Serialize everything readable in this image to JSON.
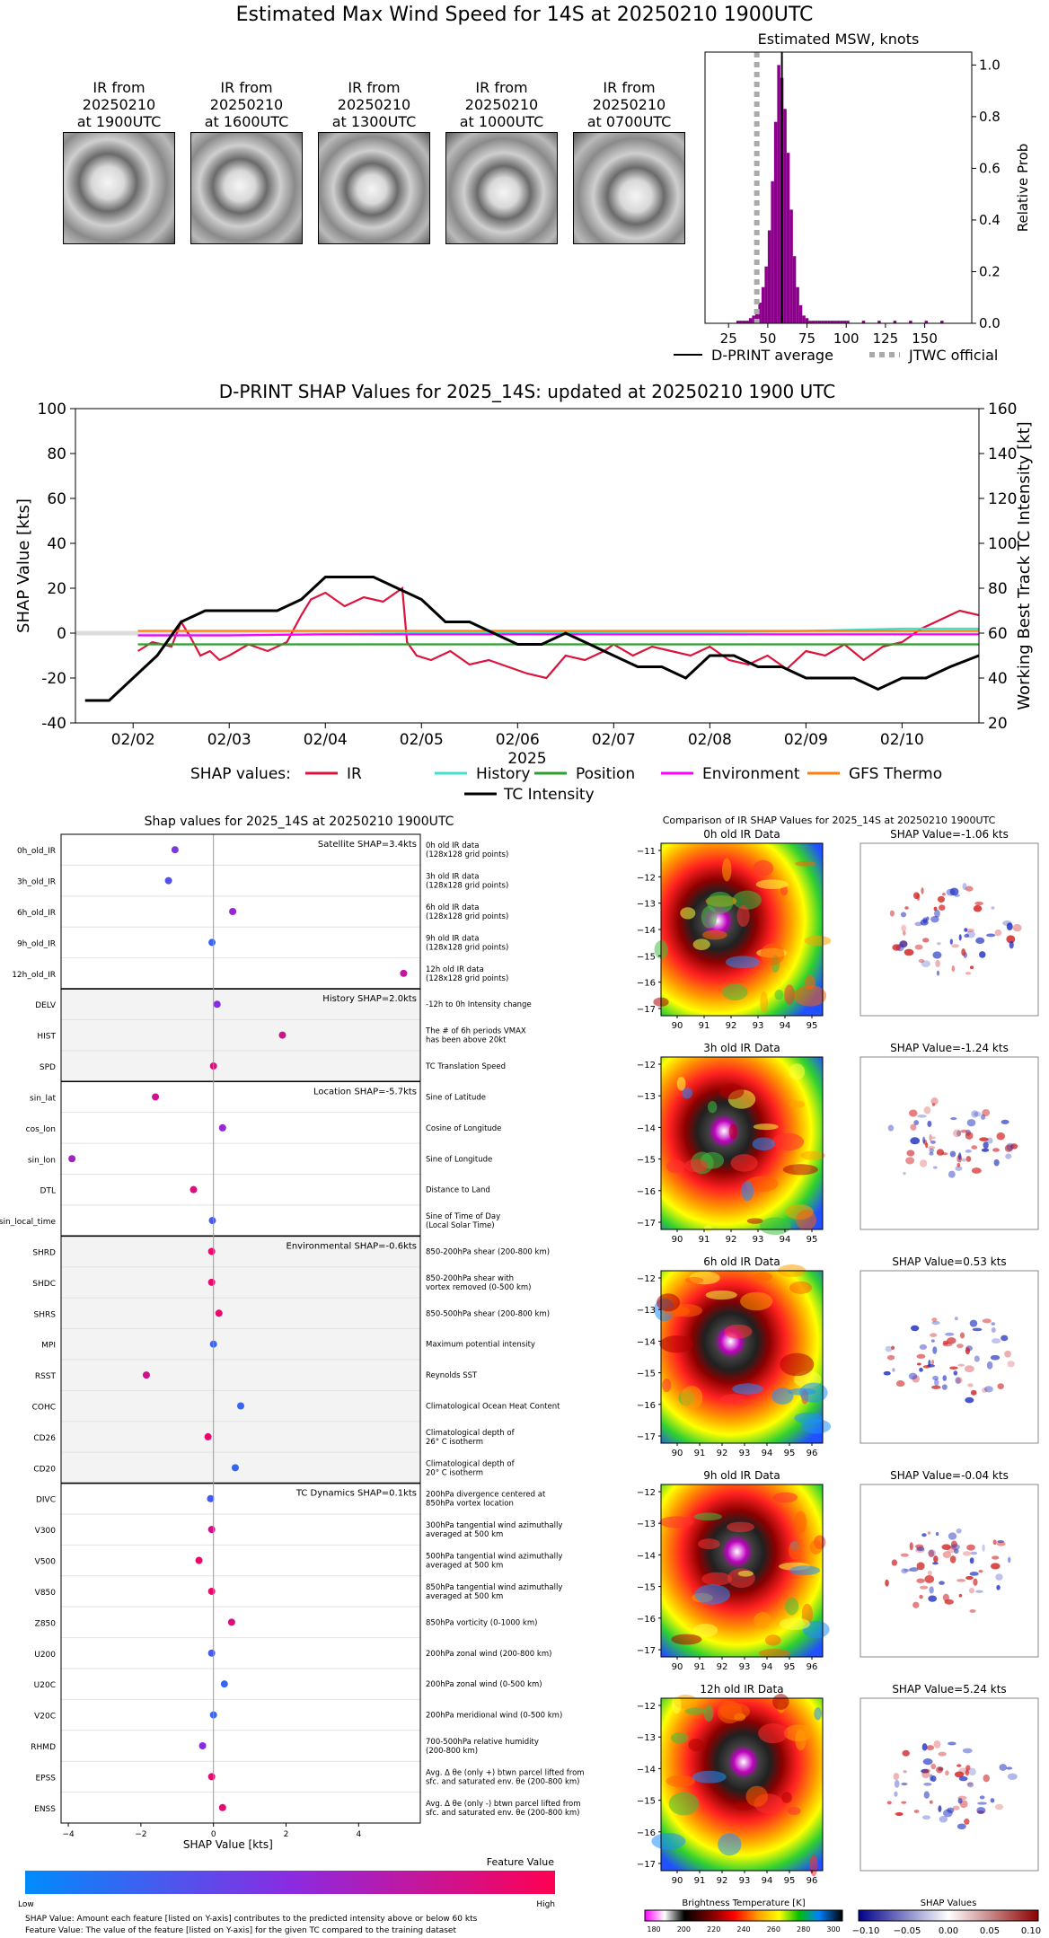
{
  "main_title": "Estimated Max Wind Speed for 14S at 20250210 1900UTC",
  "thumbnails": [
    {
      "label": "IR from\n20250210\nat 1900UTC"
    },
    {
      "label": "IR from\n20250210\nat 1600UTC"
    },
    {
      "label": "IR from\n20250210\nat 1300UTC"
    },
    {
      "label": "IR from\n20250210\nat 1000UTC"
    },
    {
      "label": "IR from\n20250210\nat 0700UTC"
    }
  ],
  "chart_data": [
    {
      "type": "bar",
      "title": "Estimated MSW, knots",
      "ylabel": "Relative Prob",
      "xlim": [
        10,
        180
      ],
      "ylim": [
        0,
        1.05
      ],
      "xticks": [
        25,
        50,
        75,
        100,
        125,
        150
      ],
      "yticks": [
        0.0,
        0.2,
        0.4,
        0.6,
        0.8,
        1.0
      ],
      "bin_width": 2,
      "bins_x": [
        30,
        32,
        34,
        36,
        38,
        40,
        42,
        44,
        46,
        48,
        50,
        52,
        54,
        56,
        58,
        60,
        62,
        64,
        66,
        68,
        70,
        72,
        74,
        76,
        78,
        80,
        82,
        84,
        86,
        88,
        90,
        92,
        94,
        96,
        98,
        100,
        110,
        120,
        130,
        140,
        150,
        160
      ],
      "bins_y": [
        0.01,
        0.01,
        0.01,
        0.01,
        0.02,
        0.03,
        0.05,
        0.08,
        0.14,
        0.22,
        0.36,
        0.55,
        0.78,
        1.0,
        0.95,
        0.83,
        0.66,
        0.44,
        0.26,
        0.14,
        0.07,
        0.03,
        0.02,
        0.01,
        0.01,
        0.01,
        0.01,
        0.01,
        0.01,
        0.01,
        0.01,
        0.01,
        0.01,
        0.01,
        0.01,
        0.01,
        0.01,
        0.01,
        0.01,
        0.01,
        0.01,
        0.01
      ],
      "dprint_average": 59,
      "jtwc_official": 43,
      "legend": [
        "D-PRINT average",
        "JTWC official"
      ]
    },
    {
      "type": "line",
      "title": "D-PRINT SHAP Values for 2025_14S: updated at 20250210 1900 UTC",
      "xlabel": "2025",
      "ylabel": "SHAP Value [kts]",
      "y2label": "Working Best Track TC Intensity [kt]",
      "ylim": [
        -40,
        100
      ],
      "y2lim": [
        20,
        160
      ],
      "yticks": [
        -40,
        -20,
        0,
        20,
        40,
        60,
        80,
        100
      ],
      "y2ticks": [
        20,
        40,
        60,
        80,
        100,
        120,
        140,
        160
      ],
      "xlim_days": [
        1.4,
        10.8
      ],
      "xticks": [
        "02/02",
        "02/03",
        "02/04",
        "02/05",
        "02/06",
        "02/07",
        "02/08",
        "02/09",
        "02/10"
      ],
      "legend_prefix": "SHAP values:",
      "series": [
        {
          "name": "IR",
          "color": "#dc143c",
          "x": [
            2.05,
            2.2,
            2.4,
            2.5,
            2.6,
            2.7,
            2.8,
            2.9,
            3.0,
            3.2,
            3.4,
            3.6,
            3.75,
            3.85,
            4.0,
            4.2,
            4.4,
            4.6,
            4.8,
            4.85,
            4.95,
            5.1,
            5.3,
            5.5,
            5.7,
            5.9,
            6.1,
            6.3,
            6.5,
            6.7,
            6.9,
            7.0,
            7.2,
            7.4,
            7.6,
            7.8,
            8.0,
            8.2,
            8.4,
            8.6,
            8.8,
            9.0,
            9.2,
            9.4,
            9.6,
            9.8,
            10.0,
            10.2,
            10.4,
            10.6,
            10.8
          ],
          "y": [
            -8,
            -4,
            -6,
            5,
            -2,
            -10,
            -8,
            -12,
            -10,
            -5,
            -8,
            -4,
            8,
            15,
            18,
            12,
            16,
            14,
            20,
            -4,
            -10,
            -12,
            -8,
            -14,
            -12,
            -15,
            -18,
            -20,
            -10,
            -12,
            -8,
            -5,
            -10,
            -6,
            -8,
            -10,
            -6,
            -12,
            -14,
            -10,
            -16,
            -8,
            -10,
            -5,
            -12,
            -6,
            -4,
            2,
            6,
            10,
            8
          ]
        },
        {
          "name": "History",
          "color": "#40e0d0",
          "x": [
            2.05,
            3,
            4,
            5,
            6,
            7,
            8,
            9,
            10,
            10.8
          ],
          "y": [
            -1,
            -1,
            -0.5,
            0,
            0,
            0.5,
            0.5,
            1,
            2,
            2
          ]
        },
        {
          "name": "Position",
          "color": "#2ca02c",
          "x": [
            2.05,
            3,
            4,
            5,
            6,
            7,
            8,
            9,
            10,
            10.8
          ],
          "y": [
            -5,
            -5,
            -5,
            -5,
            -5,
            -5,
            -5,
            -5,
            -5,
            -5
          ]
        },
        {
          "name": "Environment",
          "color": "#ff00ff",
          "x": [
            2.05,
            3,
            4,
            5,
            6,
            7,
            8,
            9,
            10,
            10.8
          ],
          "y": [
            -1,
            -1,
            -0.5,
            -0.5,
            -0.5,
            -0.5,
            -0.5,
            -0.5,
            -0.5,
            -0.5
          ]
        },
        {
          "name": "GFS Thermo",
          "color": "#ff7f0e",
          "x": [
            2.05,
            3,
            4,
            5,
            6,
            7,
            8,
            9,
            10,
            10.8
          ],
          "y": [
            1,
            1,
            1,
            1,
            1,
            1,
            1,
            1,
            1,
            1
          ]
        },
        {
          "name": "TC Intensity",
          "color": "#000000",
          "axis": "right",
          "x": [
            1.5,
            1.75,
            2.0,
            2.25,
            2.5,
            2.75,
            3.0,
            3.25,
            3.5,
            3.75,
            4.0,
            4.25,
            4.5,
            4.75,
            5.0,
            5.25,
            5.5,
            5.75,
            6.0,
            6.25,
            6.5,
            6.75,
            7.0,
            7.25,
            7.5,
            7.75,
            8.0,
            8.25,
            8.5,
            8.75,
            9.0,
            9.25,
            9.5,
            9.75,
            10.0,
            10.25,
            10.5,
            10.8
          ],
          "y": [
            30,
            30,
            40,
            50,
            65,
            70,
            70,
            70,
            70,
            75,
            85,
            85,
            85,
            80,
            75,
            65,
            65,
            60,
            55,
            55,
            60,
            55,
            50,
            45,
            45,
            40,
            50,
            50,
            45,
            45,
            40,
            40,
            40,
            35,
            40,
            40,
            45,
            50
          ]
        }
      ]
    },
    {
      "type": "scatter",
      "title": "Shap values for 2025_14S at 20250210 1900UTC",
      "xlabel": "SHAP Value [kts]",
      "xlim": [
        -4.2,
        5.7
      ],
      "xticks": [
        -4,
        -2,
        0,
        2,
        4
      ],
      "colorbar": {
        "title": "Feature Value",
        "low": "Low",
        "high": "High"
      },
      "groups": [
        {
          "label": "Satellite SHAP=3.4kts",
          "shaded": false,
          "features": [
            {
              "name": "0h_old_IR",
              "shap": -1.06,
              "value": 0.45,
              "desc": "0h old IR data\n(128x128 grid points)"
            },
            {
              "name": "3h_old_IR",
              "shap": -1.24,
              "value": 0.3,
              "desc": "3h old IR data\n(128x128 grid points)"
            },
            {
              "name": "6h_old_IR",
              "shap": 0.53,
              "value": 0.55,
              "desc": "6h old IR data\n(128x128 grid points)"
            },
            {
              "name": "9h_old_IR",
              "shap": -0.04,
              "value": 0.2,
              "desc": "9h old IR data\n(128x128 grid points)"
            },
            {
              "name": "12h_old_IR",
              "shap": 5.24,
              "value": 0.75,
              "desc": "12h old IR data\n(128x128 grid points)"
            }
          ]
        },
        {
          "label": "History SHAP=2.0kts",
          "shaded": true,
          "features": [
            {
              "name": "DELV",
              "shap": 0.1,
              "value": 0.5,
              "desc": "-12h to 0h Intensity change"
            },
            {
              "name": "HIST",
              "shap": 1.9,
              "value": 0.8,
              "desc": "The # of 6h periods VMAX\nhas been above 20kt"
            },
            {
              "name": "SPD",
              "shap": 0.0,
              "value": 0.85,
              "desc": "TC Translation Speed"
            }
          ]
        },
        {
          "label": "Location SHAP=-5.7kts",
          "shaded": false,
          "features": [
            {
              "name": "sin_lat",
              "shap": -1.6,
              "value": 0.8,
              "desc": "Sine of Latitude"
            },
            {
              "name": "cos_lon",
              "shap": 0.25,
              "value": 0.55,
              "desc": "Cosine of Longitude"
            },
            {
              "name": "sin_lon",
              "shap": -3.9,
              "value": 0.6,
              "desc": "Sine of Longitude"
            },
            {
              "name": "DTL",
              "shap": -0.55,
              "value": 0.85,
              "desc": "Distance to Land"
            },
            {
              "name": "sin_local_time",
              "shap": -0.03,
              "value": 0.25,
              "desc": "Sine of Time of Day\n(Local Solar Time)"
            }
          ]
        },
        {
          "label": "Environmental SHAP=-0.6kts",
          "shaded": true,
          "features": [
            {
              "name": "SHRD",
              "shap": -0.05,
              "value": 0.9,
              "desc": "850-200hPa shear (200-800 km)"
            },
            {
              "name": "SHDC",
              "shap": -0.05,
              "value": 0.9,
              "desc": "850-200hPa shear with\nvortex removed (0-500 km)"
            },
            {
              "name": "SHRS",
              "shap": 0.15,
              "value": 0.9,
              "desc": "850-500hPa shear (200-800 km)"
            },
            {
              "name": "MPI",
              "shap": 0.0,
              "value": 0.2,
              "desc": "Maximum potential intensity"
            },
            {
              "name": "RSST",
              "shap": -1.85,
              "value": 0.8,
              "desc": "Reynolds SST"
            },
            {
              "name": "COHC",
              "shap": 0.75,
              "value": 0.2,
              "desc": "Climatological Ocean Heat Content"
            },
            {
              "name": "CD26",
              "shap": -0.15,
              "value": 0.9,
              "desc": "Climatological depth of\n26° C isotherm"
            },
            {
              "name": "CD20",
              "shap": 0.6,
              "value": 0.2,
              "desc": "Climatological depth of\n20° C isotherm"
            }
          ]
        },
        {
          "label": "TC Dynamics SHAP=0.1kts",
          "shaded": false,
          "features": [
            {
              "name": "DIVC",
              "shap": -0.08,
              "value": 0.25,
              "desc": "200hPa divergence centered at\n850hPa vortex location"
            },
            {
              "name": "V300",
              "shap": -0.05,
              "value": 0.8,
              "desc": "300hPa tangential wind azimuthally\naveraged at 500 km"
            },
            {
              "name": "V500",
              "shap": -0.4,
              "value": 0.9,
              "desc": "500hPa tangential wind azimuthally\naveraged at 500 km"
            },
            {
              "name": "V850",
              "shap": -0.05,
              "value": 0.9,
              "desc": "850hPa tangential wind azimuthally\naveraged at 500 km"
            },
            {
              "name": "Z850",
              "shap": 0.5,
              "value": 0.85,
              "desc": "850hPa vorticity (0-1000 km)"
            },
            {
              "name": "U200",
              "shap": -0.05,
              "value": 0.25,
              "desc": "200hPa zonal wind (200-800 km)"
            },
            {
              "name": "U20C",
              "shap": 0.3,
              "value": 0.2,
              "desc": "200hPa zonal wind (0-500 km)"
            },
            {
              "name": "V20C",
              "shap": 0.0,
              "value": 0.2,
              "desc": "200hPa meridional wind (0-500 km)"
            },
            {
              "name": "RHMD",
              "shap": -0.3,
              "value": 0.5,
              "desc": "700-500hPa relative humidity\n(200-800 km)"
            },
            {
              "name": "EPSS",
              "shap": -0.05,
              "value": 0.9,
              "desc": "Avg. Δ θe (only +) btwn parcel lifted from\nsfc. and saturated env. θe (200-800 km)"
            },
            {
              "name": "ENSS",
              "shap": 0.25,
              "value": 0.9,
              "desc": "Avg. Δ θe (only -) btwn parcel lifted from\nsfc. and saturated env. θe (200-800 km)"
            }
          ]
        }
      ]
    },
    {
      "type": "heatmap",
      "title": "Comparison of IR SHAP Values for 2025_14S at 20250210 1900UTC",
      "panels": [
        {
          "ir_title": "0h old IR Data",
          "shap_title": "SHAP Value=-1.06 kts",
          "xticks": [
            "90",
            "91",
            "92",
            "93",
            "94",
            "95"
          ],
          "yticks": [
            "−11",
            "−12",
            "−13",
            "−14",
            "−15",
            "−16",
            "−17"
          ]
        },
        {
          "ir_title": "3h old IR Data",
          "shap_title": "SHAP Value=-1.24 kts",
          "xticks": [
            "90",
            "91",
            "92",
            "93",
            "94",
            "95"
          ],
          "yticks": [
            "−12",
            "−13",
            "−14",
            "−15",
            "−16",
            "−17"
          ]
        },
        {
          "ir_title": "6h old IR Data",
          "shap_title": "SHAP Value=0.53 kts",
          "xticks": [
            "90",
            "91",
            "92",
            "93",
            "94",
            "95",
            "96"
          ],
          "yticks": [
            "−12",
            "−13",
            "−14",
            "−15",
            "−16",
            "−17"
          ]
        },
        {
          "ir_title": "9h old IR Data",
          "shap_title": "SHAP Value=-0.04 kts",
          "xticks": [
            "90",
            "91",
            "92",
            "93",
            "94",
            "95",
            "96"
          ],
          "yticks": [
            "−12",
            "−13",
            "−14",
            "−15",
            "−16",
            "−17"
          ]
        },
        {
          "ir_title": "12h old IR Data",
          "shap_title": "SHAP Value=5.24 kts",
          "xticks": [
            "90",
            "91",
            "92",
            "93",
            "94",
            "95",
            "96"
          ],
          "yticks": [
            "−12",
            "−13",
            "−14",
            "−15",
            "−16",
            "−17"
          ]
        }
      ],
      "ir_colorbar": {
        "title": "Brightness Temperature [K]",
        "ticks": [
          "180",
          "200",
          "220",
          "240",
          "260",
          "280",
          "300"
        ]
      },
      "shap_colorbar": {
        "title": "SHAP Values",
        "ticks": [
          "−0.10",
          "−0.05",
          "0.00",
          "0.05",
          "0.10"
        ]
      }
    }
  ],
  "footnotes": {
    "line1": "SHAP Value: Amount each feature [listed on Y-axis] contributes to the predicted intensity above or below 60 kts",
    "line2": "Feature Value: The value of the feature [listed on Y-axis] for the given TC compared to the training dataset"
  }
}
